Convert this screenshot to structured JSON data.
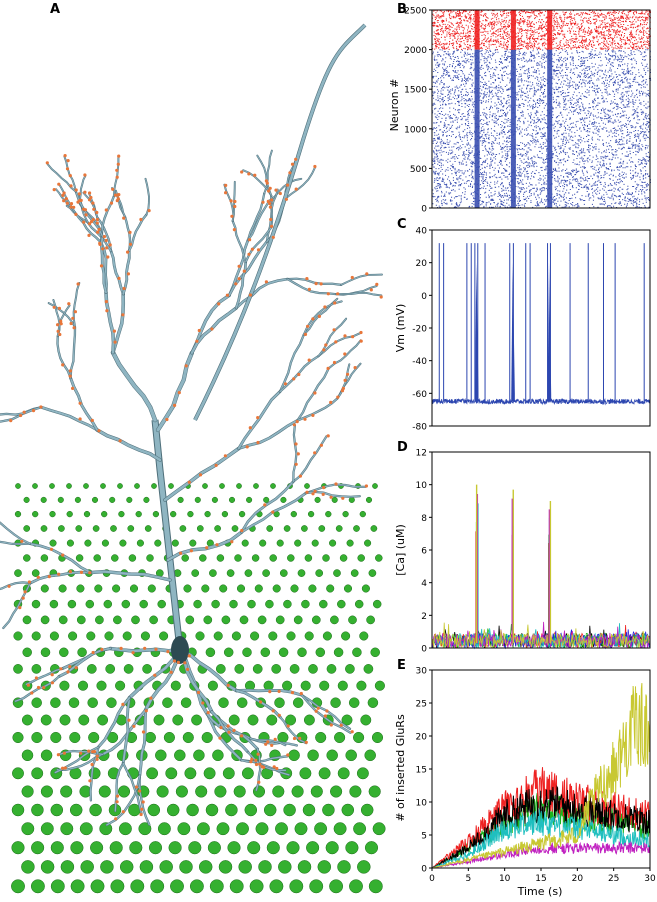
{
  "panels": {
    "a": {
      "letter": "A"
    },
    "b": {
      "letter": "B"
    },
    "c": {
      "letter": "C"
    },
    "d": {
      "letter": "D"
    },
    "e": {
      "letter": "E"
    }
  },
  "colors": {
    "excitatory": "#3a4fb0",
    "inhibitory": "#ee2222",
    "vm_trace": "#2c46b0",
    "dendrite": "#8fb5c2",
    "spine": "#e8763a",
    "synapse_sphere": "#35b030"
  },
  "neuron_icon": "pyramidal-neuron-3d-reconstruction",
  "chart_data": [
    {
      "id": "B",
      "type": "scatter",
      "title": "",
      "xlabel": "",
      "ylabel": "Neuron #",
      "xlim": [
        0,
        30
      ],
      "ylim": [
        0,
        2500
      ],
      "yticks": [
        0,
        500,
        1000,
        1500,
        2000,
        2500
      ],
      "series": [
        {
          "population": "excitatory",
          "neurons": [
            0,
            2000
          ],
          "color": "#3a4fb0"
        },
        {
          "population": "inhibitory",
          "neurons": [
            2000,
            2500
          ],
          "color": "#ee2222"
        }
      ],
      "synchronous_events_s": [
        6.2,
        11.2,
        16.2
      ]
    },
    {
      "id": "C",
      "type": "line",
      "title": "",
      "xlabel": "",
      "ylabel": "Vm (mV)",
      "xlim": [
        0,
        30
      ],
      "ylim": [
        -80,
        40
      ],
      "yticks": [
        -80,
        -60,
        -40,
        -20,
        0,
        20,
        40
      ],
      "resting_mv": -65,
      "spike_peak_mv": 32,
      "spike_times_s": [
        1.0,
        1.6,
        4.8,
        5.4,
        5.9,
        6.3,
        7.3,
        10.7,
        11.2,
        12.9,
        13.5,
        15.9,
        16.3,
        19.0,
        21.5,
        23.6,
        25.2,
        29.2
      ],
      "bursts_s": [
        6.2,
        11.2,
        16.2
      ]
    },
    {
      "id": "D",
      "type": "line",
      "title": "",
      "xlabel": "",
      "ylabel": "[Ca] (uM)",
      "xlim": [
        0,
        30
      ],
      "ylim": [
        0,
        12
      ],
      "yticks": [
        0,
        2,
        4,
        6,
        8,
        10,
        12
      ],
      "baseline_um": 0.5,
      "peaks": [
        {
          "x": 6.2,
          "y": 10.0
        },
        {
          "x": 11.2,
          "y": 9.7
        },
        {
          "x": 16.2,
          "y": 9.0
        }
      ],
      "series_colors": [
        "#000000",
        "#ee2222",
        "#1db31d",
        "#2222dd",
        "#1fbfbf",
        "#c020c0",
        "#c8c832"
      ]
    },
    {
      "id": "E",
      "type": "line",
      "title": "",
      "xlabel": "Time (s)",
      "ylabel": "# of inserted GluRs",
      "xlim": [
        0,
        30
      ],
      "ylim": [
        0,
        30
      ],
      "xticks": [
        0,
        5,
        10,
        15,
        20,
        25,
        30
      ],
      "yticks": [
        0,
        5,
        10,
        15,
        20,
        25,
        30
      ],
      "series": [
        {
          "color": "#c8c832",
          "x": [
            0,
            20,
            22,
            25,
            28,
            30
          ],
          "y": [
            0,
            5,
            10,
            15,
            22,
            21
          ]
        },
        {
          "color": "#c020c0",
          "x": [
            0,
            5,
            10,
            15,
            20,
            25,
            30
          ],
          "y": [
            0,
            1,
            2,
            3,
            3,
            3,
            3
          ]
        },
        {
          "color": "#1fbfbf",
          "x": [
            0,
            5,
            10,
            15,
            20,
            25,
            30
          ],
          "y": [
            0,
            2,
            6,
            7,
            6,
            5,
            4
          ]
        },
        {
          "color": "#000000",
          "x": [
            0,
            5,
            10,
            15,
            20,
            25,
            30
          ],
          "y": [
            0,
            3,
            8,
            10,
            9,
            8,
            7
          ]
        },
        {
          "color": "#ee2222",
          "x": [
            0,
            5,
            10,
            15,
            20,
            25,
            30
          ],
          "y": [
            0,
            4,
            9,
            12,
            10,
            9,
            8
          ]
        },
        {
          "color": "#1db31d",
          "x": [
            0,
            5,
            10,
            15,
            20,
            25,
            30
          ],
          "y": [
            0,
            3,
            7,
            9,
            8,
            7,
            6
          ]
        }
      ]
    }
  ]
}
